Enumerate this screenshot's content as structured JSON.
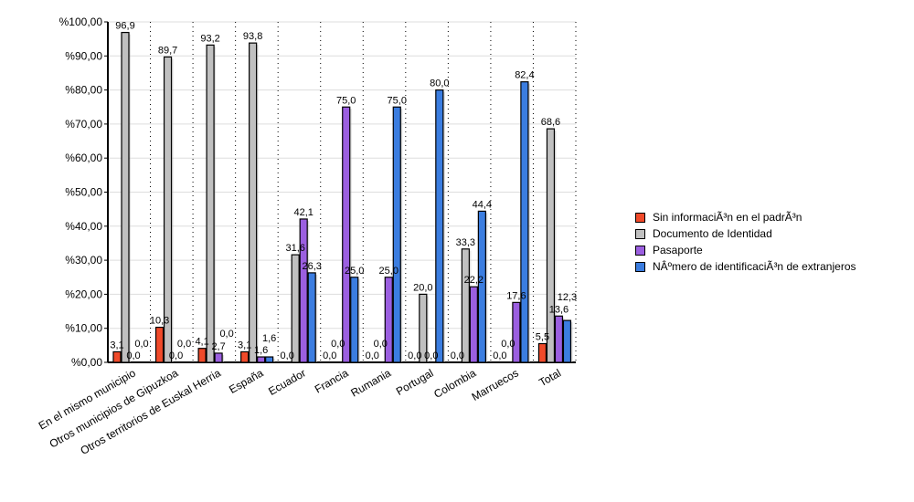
{
  "chart_data": {
    "type": "bar",
    "title": "",
    "xlabel": "",
    "ylabel": "",
    "ylim": [
      0,
      100
    ],
    "yticks": [
      "%0,00",
      "%10,00",
      "%20,00",
      "%30,00",
      "%40,00",
      "%50,00",
      "%60,00",
      "%70,00",
      "%80,00",
      "%90,00",
      "%100,00"
    ],
    "categories": [
      "En el mismo municipio",
      "Otros municipios de Gipuzkoa",
      "Otros territorios de Euskal Herria",
      "España",
      "Ecuador",
      "Francia",
      "Rumania",
      "Portugal",
      "Colombia",
      "Marruecos",
      "Total"
    ],
    "series": [
      {
        "name": "Sin informaciÃ³n en el padrÃ³n",
        "color": "#f04a2a",
        "values": [
          3.1,
          10.3,
          4.1,
          3.1,
          0,
          0,
          0,
          0,
          0,
          0,
          5.5
        ],
        "labels": [
          "3,1",
          "10,3",
          "4,1",
          "3,1",
          "0,0",
          "0,0",
          "0,0",
          "0,0",
          "0,0",
          "0,0",
          "5,5"
        ]
      },
      {
        "name": "Documento de Identidad",
        "color": "#c0c0c0",
        "values": [
          96.9,
          89.7,
          93.2,
          93.8,
          31.6,
          0,
          0,
          20,
          33.3,
          0,
          68.6
        ],
        "labels": [
          "96,9",
          "89,7",
          "93,2",
          "93,8",
          "31,6",
          "0,0",
          "0,0",
          "20,0",
          "33,3",
          "0,0",
          "68,6"
        ]
      },
      {
        "name": "Pasaporte",
        "color": "#9b5fe0",
        "values": [
          0,
          0,
          2.7,
          1.6,
          42.1,
          75,
          25,
          0,
          22.2,
          17.6,
          13.6
        ],
        "labels": [
          "0,0",
          "0,0",
          "2,7",
          "1,6",
          "42,1",
          "75,0",
          "25,0",
          "0,0",
          "22,2",
          "17,6",
          "13,6"
        ]
      },
      {
        "name": "NÂºmero de identificaciÃ³n de extranjeros",
        "color": "#3b7de0",
        "values": [
          0,
          0,
          0,
          1.6,
          26.3,
          25,
          75,
          80,
          44.4,
          82.4,
          12.3
        ],
        "labels": [
          "0,0",
          "0,0",
          "0,0",
          "1,6",
          "26,3",
          "25,0",
          "75,0",
          "80,0",
          "44,4",
          "82,4",
          "12,3"
        ]
      }
    ],
    "grid": true,
    "legend_position": "right"
  }
}
